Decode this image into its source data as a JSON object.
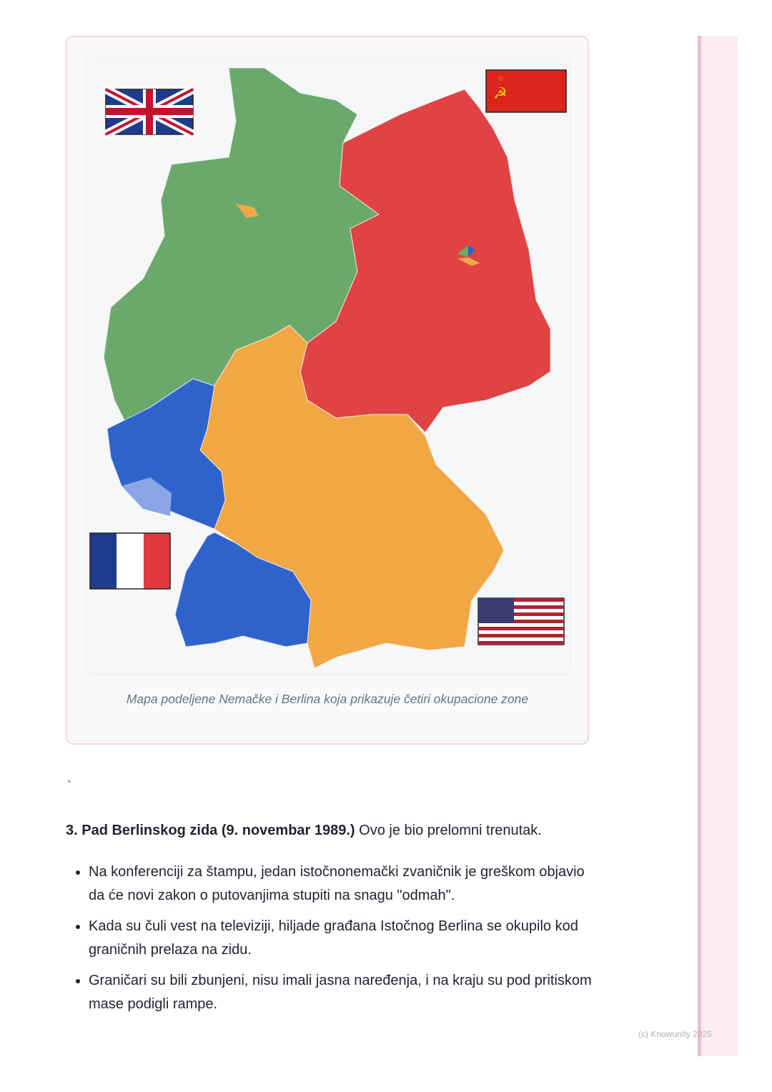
{
  "figure": {
    "caption": "Mapa podeljene Nemačke i Berlina koja prikazuje četiri okupacione zone",
    "zones": [
      {
        "name": "British zone",
        "color": "#6aa96b",
        "flag": "uk-flag"
      },
      {
        "name": "Soviet zone",
        "color": "#e04343",
        "flag": "ussr-flag"
      },
      {
        "name": "American zone",
        "color": "#f2a745",
        "flag": "us-flag"
      },
      {
        "name": "French zone",
        "color": "#2f63cc",
        "flag": "france-flag"
      }
    ]
  },
  "stray_mark": "`",
  "section": {
    "heading_bold": "3. Pad Berlinskog zida (9. novembar 1989.)",
    "heading_rest": " Ovo je bio prelomni trenutak.",
    "bullets": [
      "Na konferenciji za štampu, jedan istočnonemački zvaničnik je greškom objavio da će novi zakon o putovanjima stupiti na snagu \"odmah\".",
      "Kada su čuli vest na televiziji, hiljade građana Istočnog Berlina se okupilo kod graničnih prelaza na zidu.",
      "Graničari su bili zbunjeni, nisu imali jasna naređenja, i na kraju su pod pritiskom mase podigli rampe."
    ]
  },
  "footer": {
    "copyright": "(c) Knowunity 2025"
  }
}
